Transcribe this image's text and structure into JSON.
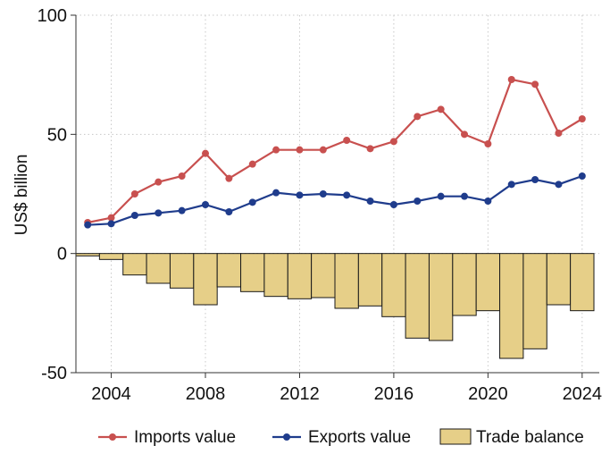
{
  "chart_data": {
    "type": "bar+line",
    "title": "",
    "xlabel": "",
    "ylabel": "US$ billion",
    "ylim": [
      -50,
      100
    ],
    "xlim": [
      2002.5,
      2024.5
    ],
    "yticks": [
      -50,
      0,
      50,
      100
    ],
    "xticks": [
      2004,
      2008,
      2012,
      2016,
      2020,
      2024
    ],
    "grid": true,
    "legend_position": "bottom",
    "x": [
      2003,
      2004,
      2005,
      2006,
      2007,
      2008,
      2009,
      2010,
      2011,
      2012,
      2013,
      2014,
      2015,
      2016,
      2017,
      2018,
      2019,
      2020,
      2021,
      2022,
      2023,
      2024
    ],
    "series": [
      {
        "name": "Imports value",
        "kind": "line",
        "color": "#c8504f",
        "values": [
          13,
          15,
          25,
          30,
          32.5,
          42,
          31.5,
          37.5,
          43.5,
          43.5,
          43.5,
          47.5,
          44,
          47,
          57.5,
          60.5,
          50,
          46,
          73,
          71,
          50.5,
          56.5
        ]
      },
      {
        "name": "Exports value",
        "kind": "line",
        "color": "#1f3c8c",
        "values": [
          12,
          12.5,
          16,
          17,
          18,
          20.5,
          17.5,
          21.5,
          25.5,
          24.5,
          25,
          24.5,
          22,
          20.5,
          22,
          24,
          24,
          22,
          29,
          31,
          29,
          32.5
        ]
      },
      {
        "name": "Trade balance",
        "kind": "bar",
        "color": "#e6cf88",
        "values": [
          -1,
          -2.5,
          -9,
          -12.5,
          -14.5,
          -21.5,
          -14,
          -16,
          -18,
          -19,
          -18.5,
          -23,
          -22,
          -26.5,
          -35.5,
          -36.5,
          -26,
          -24,
          -44,
          -40,
          -21.5,
          -24
        ]
      }
    ]
  }
}
